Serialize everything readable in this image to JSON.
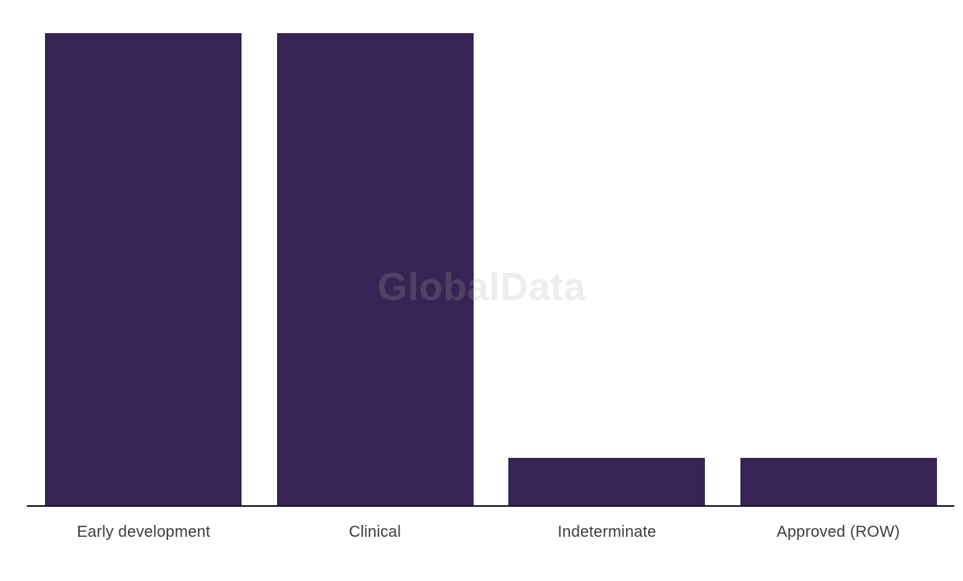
{
  "watermark": {
    "text": "GlobalData"
  },
  "chart_data": {
    "type": "bar",
    "title": "",
    "xlabel": "",
    "ylabel": "",
    "categories": [
      "Early development",
      "Clinical",
      "Indeterminate",
      "Approved (ROW)"
    ],
    "values": [
      10,
      10,
      1,
      1
    ],
    "ylim": [
      0,
      10
    ],
    "grid": false,
    "legend": false,
    "y_axis_shown": false,
    "colors": {
      "bar": "#362554",
      "axis_line": "#15152d",
      "label_text": "#3c3c3e",
      "background": "#ffffff"
    }
  }
}
